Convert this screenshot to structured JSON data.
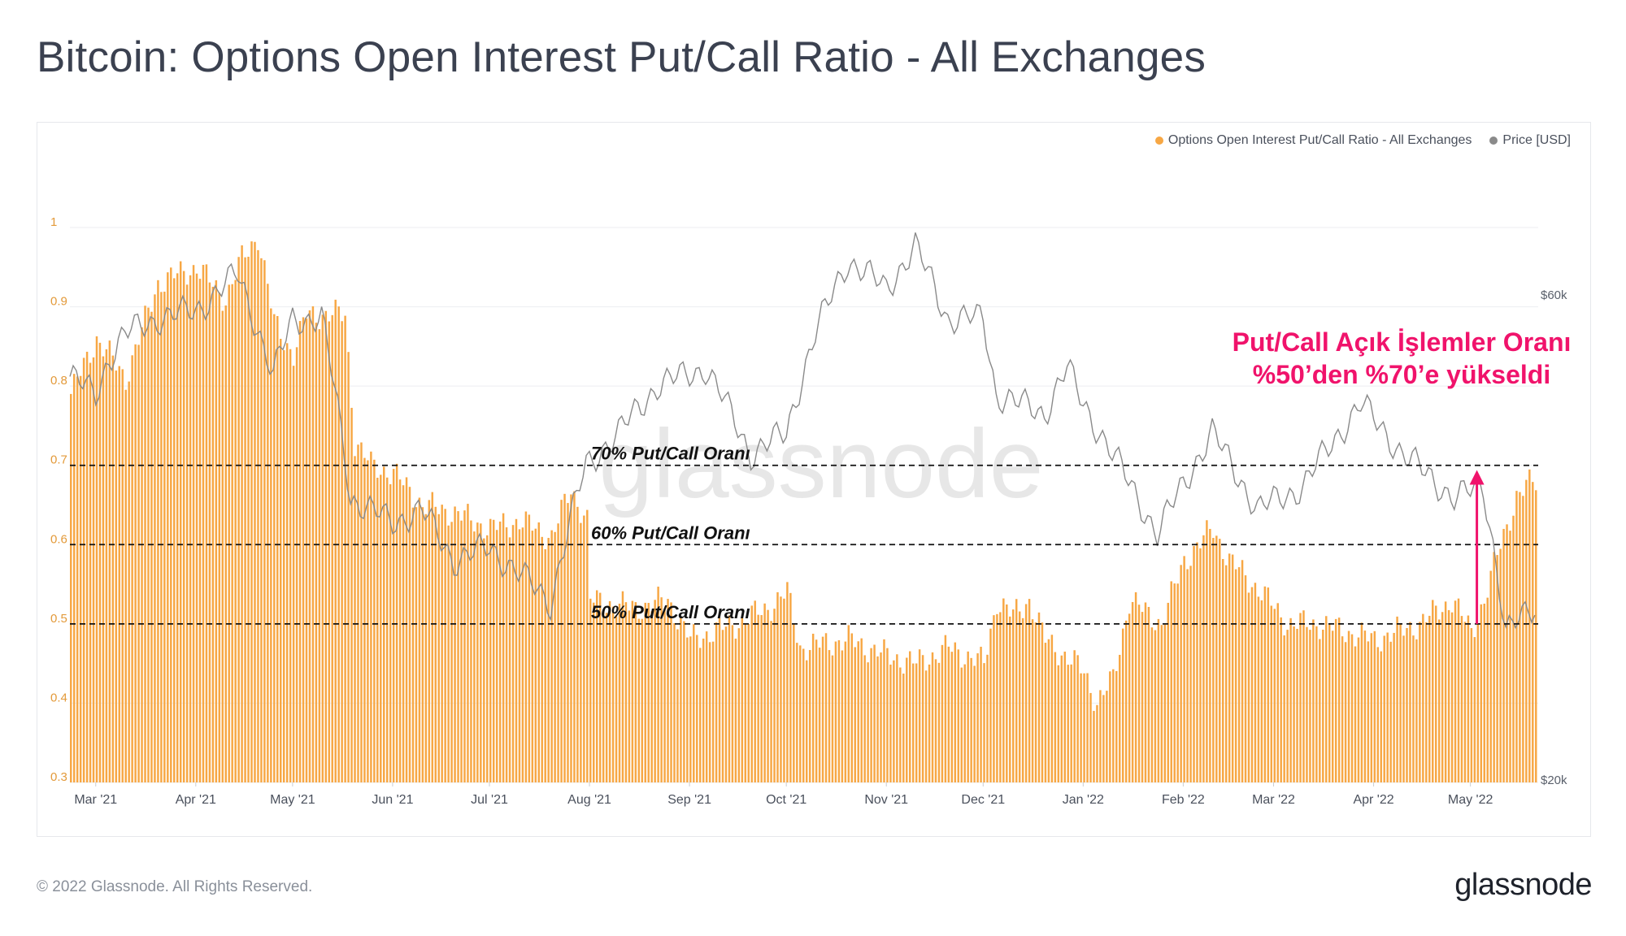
{
  "title": "Bitcoin: Options Open Interest Put/Call Ratio - All Exchanges",
  "footer": {
    "copyright": "© 2022 Glassnode. All Rights Reserved.",
    "logo": "glassnode"
  },
  "watermark": "glassnode",
  "colors": {
    "ratio_bars": "#f7a744",
    "price_line": "#8a8a8a",
    "annotation": "#f0136b",
    "title": "#3b4150",
    "guide_lines": "#111111"
  },
  "chart_data": {
    "type": "bar",
    "legend_position": "top-right",
    "grid": true,
    "title": "Bitcoin: Options Open Interest Put/Call Ratio - All Exchanges",
    "x_range": [
      "2021-02-21",
      "2022-05-22"
    ],
    "x_ticks": [
      "Mar '21",
      "Apr '21",
      "May '21",
      "Jun '21",
      "Jul '21",
      "Aug '21",
      "Sep '21",
      "Oct '21",
      "Nov '21",
      "Dec '21",
      "Jan '22",
      "Feb '22",
      "Mar '22",
      "Apr '22",
      "May '22"
    ],
    "x_tick_dates": [
      "2021-03-01",
      "2021-04-01",
      "2021-05-01",
      "2021-06-01",
      "2021-07-01",
      "2021-08-01",
      "2021-09-01",
      "2021-10-01",
      "2021-11-01",
      "2021-12-01",
      "2022-01-01",
      "2022-02-01",
      "2022-03-01",
      "2022-04-01",
      "2022-05-01"
    ],
    "y_left": {
      "ticks": [
        "0.3",
        "0.4",
        "0.5",
        "0.6",
        "0.7",
        "0.8",
        "0.9",
        "1"
      ],
      "range": [
        0.3,
        1.0
      ]
    },
    "y_right": {
      "ticks": [
        "$20k",
        "$60k"
      ],
      "range_usd": [
        20000,
        70000
      ],
      "scale": "log"
    },
    "series": [
      {
        "name": "Options Open Interest Put/Call Ratio - All Exchanges",
        "axis": "left",
        "kind": "bar",
        "points": [
          [
            "2021-02-21",
            0.79
          ],
          [
            "2021-03-01",
            0.86
          ],
          [
            "2021-03-10",
            0.81
          ],
          [
            "2021-03-15",
            0.87
          ],
          [
            "2021-03-20",
            0.93
          ],
          [
            "2021-04-01",
            0.95
          ],
          [
            "2021-04-10",
            0.91
          ],
          [
            "2021-04-15",
            0.96
          ],
          [
            "2021-04-20",
            0.99
          ],
          [
            "2021-04-25",
            0.88
          ],
          [
            "2021-05-01",
            0.84
          ],
          [
            "2021-05-05",
            0.89
          ],
          [
            "2021-05-12",
            0.89
          ],
          [
            "2021-05-17",
            0.89
          ],
          [
            "2021-05-20",
            0.73
          ],
          [
            "2021-05-25",
            0.7
          ],
          [
            "2021-06-01",
            0.69
          ],
          [
            "2021-06-10",
            0.65
          ],
          [
            "2021-06-20",
            0.64
          ],
          [
            "2021-07-01",
            0.62
          ],
          [
            "2021-07-10",
            0.63
          ],
          [
            "2021-07-20",
            0.61
          ],
          [
            "2021-07-26",
            0.67
          ],
          [
            "2021-07-31",
            0.63
          ],
          [
            "2021-08-01",
            0.53
          ],
          [
            "2021-08-15",
            0.52
          ],
          [
            "2021-08-25",
            0.53
          ],
          [
            "2021-09-01",
            0.48
          ],
          [
            "2021-09-15",
            0.5
          ],
          [
            "2021-09-25",
            0.52
          ],
          [
            "2021-10-01",
            0.54
          ],
          [
            "2021-10-05",
            0.47
          ],
          [
            "2021-10-20",
            0.48
          ],
          [
            "2021-11-01",
            0.46
          ],
          [
            "2021-11-10",
            0.45
          ],
          [
            "2021-11-20",
            0.47
          ],
          [
            "2021-12-01",
            0.45
          ],
          [
            "2021-12-05",
            0.53
          ],
          [
            "2021-12-10",
            0.51
          ],
          [
            "2021-12-15",
            0.53
          ],
          [
            "2021-12-20",
            0.48
          ],
          [
            "2022-01-01",
            0.44
          ],
          [
            "2022-01-05",
            0.4
          ],
          [
            "2022-01-10",
            0.43
          ],
          [
            "2022-01-15",
            0.53
          ],
          [
            "2022-01-25",
            0.5
          ],
          [
            "2022-02-01",
            0.58
          ],
          [
            "2022-02-10",
            0.62
          ],
          [
            "2022-02-15",
            0.58
          ],
          [
            "2022-02-25",
            0.54
          ],
          [
            "2022-03-05",
            0.5
          ],
          [
            "2022-03-15",
            0.5
          ],
          [
            "2022-04-01",
            0.48
          ],
          [
            "2022-04-15",
            0.5
          ],
          [
            "2022-04-25",
            0.53
          ],
          [
            "2022-05-01",
            0.49
          ],
          [
            "2022-05-05",
            0.53
          ],
          [
            "2022-05-10",
            0.6
          ],
          [
            "2022-05-15",
            0.66
          ],
          [
            "2022-05-20",
            0.68
          ]
        ]
      },
      {
        "name": "Price [USD]",
        "axis": "right",
        "kind": "line",
        "points": [
          [
            "2021-02-21",
            50000
          ],
          [
            "2021-03-01",
            48000
          ],
          [
            "2021-03-05",
            52000
          ],
          [
            "2021-03-10",
            55000
          ],
          [
            "2021-03-20",
            57000
          ],
          [
            "2021-04-01",
            58000
          ],
          [
            "2021-04-14",
            63000
          ],
          [
            "2021-04-25",
            50000
          ],
          [
            "2021-05-01",
            57000
          ],
          [
            "2021-05-10",
            57000
          ],
          [
            "2021-05-19",
            38000
          ],
          [
            "2021-05-25",
            37000
          ],
          [
            "2021-06-01",
            36000
          ],
          [
            "2021-06-10",
            37000
          ],
          [
            "2021-06-20",
            33000
          ],
          [
            "2021-07-01",
            34000
          ],
          [
            "2021-07-20",
            30000
          ],
          [
            "2021-07-31",
            41000
          ],
          [
            "2021-08-10",
            44000
          ],
          [
            "2021-08-22",
            49000
          ],
          [
            "2021-09-06",
            51000
          ],
          [
            "2021-09-20",
            42000
          ],
          [
            "2021-10-01",
            44000
          ],
          [
            "2021-10-10",
            55000
          ],
          [
            "2021-10-20",
            65000
          ],
          [
            "2021-11-01",
            61000
          ],
          [
            "2021-11-10",
            67000
          ],
          [
            "2021-11-20",
            57000
          ],
          [
            "2021-12-01",
            57000
          ],
          [
            "2021-12-05",
            48000
          ],
          [
            "2021-12-20",
            46000
          ],
          [
            "2021-12-27",
            51000
          ],
          [
            "2022-01-01",
            47000
          ],
          [
            "2022-01-10",
            42000
          ],
          [
            "2022-01-24",
            35000
          ],
          [
            "2022-02-10",
            44000
          ],
          [
            "2022-02-24",
            37000
          ],
          [
            "2022-03-10",
            39000
          ],
          [
            "2022-03-28",
            47000
          ],
          [
            "2022-04-10",
            42000
          ],
          [
            "2022-04-26",
            38000
          ],
          [
            "2022-05-05",
            39000
          ],
          [
            "2022-05-12",
            28000
          ],
          [
            "2022-05-22",
            30000
          ]
        ]
      }
    ],
    "guide_lines": [
      {
        "value": 0.7,
        "label": "70% Put/Call Oranı"
      },
      {
        "value": 0.6,
        "label": "60% Put/Call Oranı"
      },
      {
        "value": 0.5,
        "label": "50% Put/Call Oranı"
      }
    ],
    "annotation": {
      "text_line1": "Put/Call Açık İşlemler Oranı",
      "text_line2": "%50’den %70’e yükseldi",
      "arrow_date": "2022-05-03",
      "arrow_from": 0.5,
      "arrow_to": 0.69
    }
  }
}
